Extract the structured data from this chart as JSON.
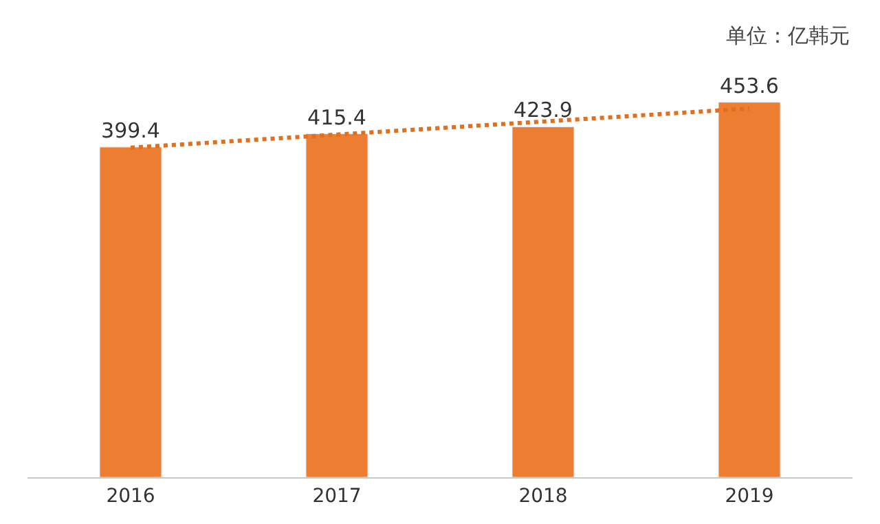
{
  "chart_data": {
    "type": "bar",
    "categories": [
      "2016",
      "2017",
      "2018",
      "2019"
    ],
    "series": [
      {
        "type": "bar",
        "color": "#ed7d31",
        "values": [
          399.4,
          415.4,
          423.9,
          453.6
        ],
        "value_labels": [
          "399.4",
          "415.4",
          "423.9",
          "453.6"
        ]
      },
      {
        "type": "line",
        "color": "#e07020",
        "values": [
          398.7,
          414.5,
          430.3,
          446.0
        ],
        "line_style": "dotted",
        "marker": "none"
      }
    ],
    "legend": false,
    "annotations": [
      "单位：亿韩元"
    ]
  }
}
